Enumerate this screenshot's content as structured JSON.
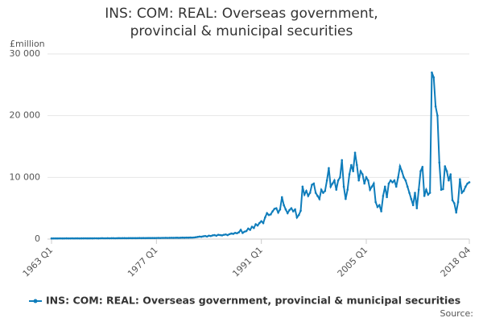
{
  "chart_data": {
    "type": "line",
    "title": "INS: COM: REAL: Overseas government, provincial & municipal securities",
    "y_unit_label": "£million",
    "source_label": "Source:",
    "categories": [
      "1963 Q1",
      null,
      null,
      null,
      null,
      null,
      null,
      null,
      null,
      null,
      null,
      null,
      null,
      null,
      null,
      null,
      null,
      null,
      null,
      null,
      null,
      null,
      null,
      null,
      null,
      null,
      null,
      null,
      null,
      null,
      null,
      null,
      null,
      null,
      null,
      null,
      null,
      null,
      null,
      null,
      null,
      null,
      null,
      null,
      null,
      null,
      null,
      null,
      null,
      null,
      null,
      null,
      null,
      null,
      null,
      null,
      "1977 Q1",
      null,
      null,
      null,
      null,
      null,
      null,
      null,
      null,
      null,
      null,
      null,
      null,
      null,
      null,
      null,
      null,
      null,
      null,
      null,
      null,
      null,
      null,
      null,
      null,
      null,
      null,
      null,
      null,
      null,
      null,
      null,
      null,
      null,
      null,
      null,
      null,
      null,
      null,
      null,
      null,
      null,
      null,
      null,
      null,
      null,
      null,
      null,
      null,
      null,
      null,
      null,
      null,
      null,
      null,
      null,
      "1991 Q1",
      null,
      null,
      null,
      null,
      null,
      null,
      null,
      null,
      null,
      null,
      null,
      null,
      null,
      null,
      null,
      null,
      null,
      null,
      null,
      null,
      null,
      null,
      null,
      null,
      null,
      null,
      null,
      null,
      null,
      null,
      null,
      null,
      null,
      null,
      null,
      null,
      null,
      null,
      null,
      null,
      null,
      null,
      null,
      null,
      null,
      null,
      null,
      null,
      null,
      null,
      null,
      null,
      null,
      null,
      null,
      "2005 Q1",
      null,
      null,
      null,
      null,
      null,
      null,
      null,
      null,
      null,
      null,
      null,
      null,
      null,
      null,
      null,
      null,
      null,
      null,
      null,
      null,
      null,
      null,
      null,
      null,
      null,
      null,
      null,
      null,
      null,
      null,
      null,
      null,
      null,
      null,
      null,
      null,
      null,
      null,
      null,
      null,
      null,
      null,
      null,
      null,
      null,
      null,
      null,
      null,
      null,
      null,
      null,
      null,
      null,
      null,
      "2018 Q4"
    ],
    "series": [
      {
        "name": "INS: COM: REAL: Overseas government, provincial & municipal securities",
        "color": "#0f7dbb",
        "values": [
          100,
          100,
          110,
          100,
          110,
          110,
          100,
          110,
          120,
          110,
          110,
          120,
          110,
          120,
          120,
          110,
          120,
          120,
          130,
          120,
          120,
          130,
          120,
          130,
          130,
          120,
          130,
          140,
          130,
          130,
          140,
          130,
          140,
          140,
          130,
          140,
          150,
          140,
          150,
          150,
          140,
          150,
          160,
          150,
          160,
          150,
          160,
          170,
          160,
          170,
          160,
          170,
          180,
          170,
          180,
          170,
          180,
          190,
          180,
          190,
          190,
          200,
          190,
          200,
          210,
          200,
          210,
          220,
          200,
          220,
          230,
          220,
          240,
          230,
          250,
          240,
          260,
          300,
          350,
          400,
          380,
          450,
          500,
          420,
          550,
          500,
          600,
          650,
          550,
          700,
          650,
          600,
          700,
          750,
          650,
          800,
          900,
          850,
          1000,
          950,
          1100,
          1500,
          1000,
          1200,
          1300,
          1700,
          1500,
          2000,
          1800,
          2400,
          2200,
          2600,
          2900,
          2600,
          3500,
          4200,
          3900,
          4000,
          4500,
          4900,
          5000,
          4300,
          4800,
          6800,
          5500,
          4800,
          4200,
          4700,
          5000,
          4500,
          4800,
          3500,
          3900,
          4600,
          8500,
          7200,
          7800,
          7000,
          7500,
          8800,
          9000,
          7500,
          7000,
          6500,
          8000,
          7500,
          7800,
          9500,
          11500,
          8500,
          9000,
          9500,
          8000,
          9500,
          10000,
          12800,
          8500,
          6500,
          8000,
          10500,
          12000,
          11000,
          14000,
          12000,
          9500,
          11000,
          10500,
          9000,
          10000,
          9500,
          8000,
          8500,
          9000,
          6000,
          5200,
          5500,
          4500,
          7000,
          8500,
          6800,
          9000,
          9500,
          9200,
          9500,
          8500,
          10000,
          11800,
          11000,
          10000,
          9500,
          8500,
          7500,
          6500,
          5500,
          7500,
          5000,
          8000,
          11000,
          11700,
          7000,
          8000,
          7200,
          7500,
          27000,
          26200,
          21500,
          20000,
          12400,
          8000,
          8100,
          11800,
          11000,
          9500,
          10500,
          6300,
          5800,
          4300,
          6000,
          9700,
          7500,
          7800,
          8500,
          9000,
          9200
        ]
      }
    ],
    "ylim": [
      0,
      30000
    ],
    "yticks": [
      0,
      {
        "value": 10000,
        "label": "10 000"
      },
      {
        "value": 20000,
        "label": "20 000"
      },
      {
        "value": 30000,
        "label": "30 000"
      }
    ],
    "grid": true,
    "legend": "bottom"
  }
}
